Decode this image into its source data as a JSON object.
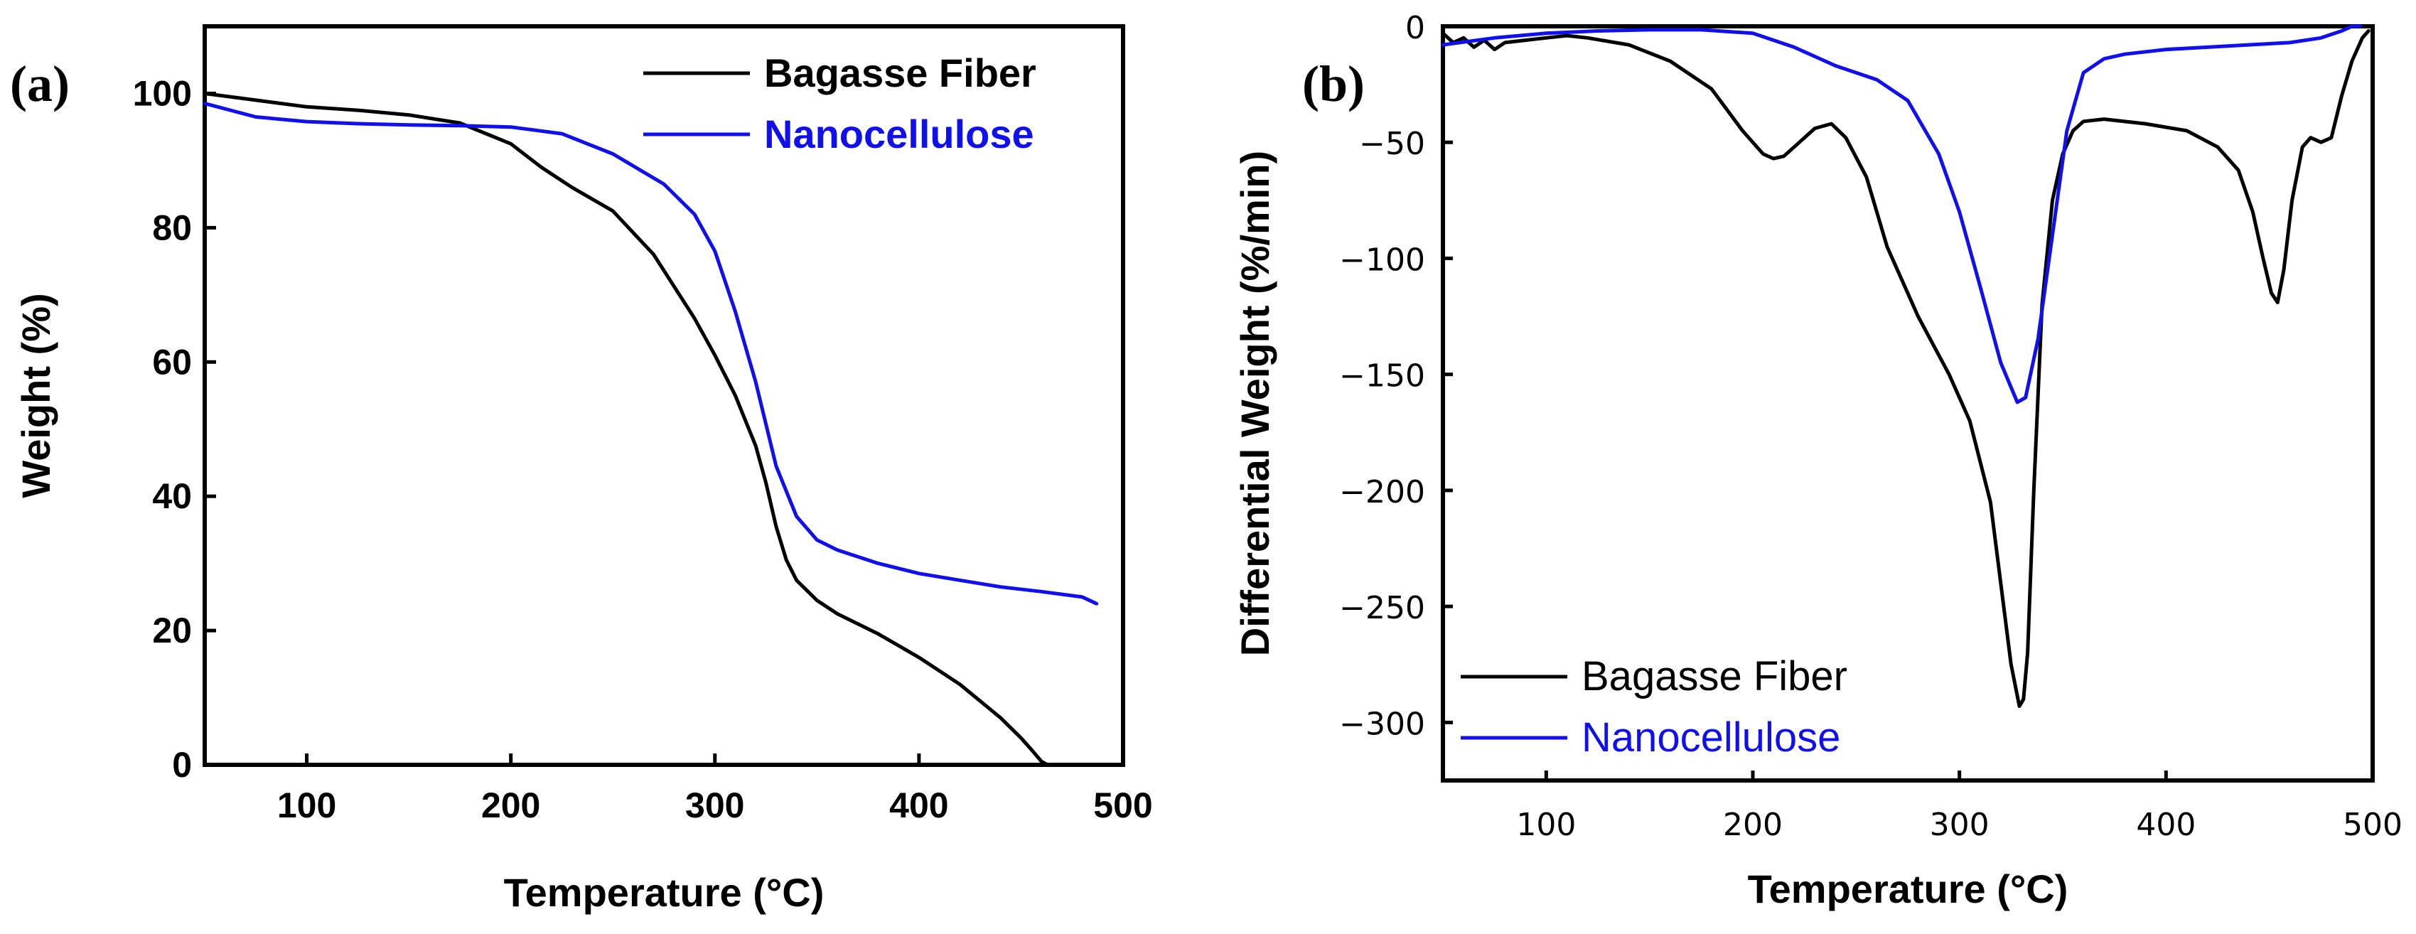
{
  "chart_data": [
    {
      "panel": "(a)",
      "type": "line",
      "title": "",
      "xlabel": "Temperature (°C)",
      "ylabel": "Weight (%)",
      "xlim": [
        50,
        500
      ],
      "ylim": [
        0,
        110
      ],
      "xticks": [
        100,
        200,
        300,
        400,
        500
      ],
      "yticks": [
        0,
        20,
        40,
        60,
        80,
        100
      ],
      "grid": false,
      "legend_position": "top-right",
      "series": [
        {
          "name": "Bagasse Fiber",
          "color": "#000000",
          "x": [
            50,
            75,
            100,
            125,
            150,
            175,
            200,
            215,
            230,
            250,
            270,
            290,
            300,
            310,
            320,
            325,
            330,
            335,
            340,
            350,
            360,
            380,
            400,
            420,
            440,
            450,
            455,
            460,
            463
          ],
          "y": [
            100,
            99,
            98,
            97.5,
            96.8,
            95.6,
            92.5,
            89,
            86,
            82.5,
            76,
            66.5,
            61,
            55,
            47.5,
            42,
            35.5,
            30.5,
            27.5,
            24.5,
            22.5,
            19.5,
            16,
            12,
            7,
            4,
            2.3,
            0.5,
            0
          ]
        },
        {
          "name": "Nanocellulose",
          "color": "#1010ee",
          "x": [
            50,
            75,
            100,
            125,
            150,
            175,
            200,
            225,
            250,
            275,
            290,
            300,
            310,
            320,
            330,
            340,
            350,
            360,
            380,
            400,
            420,
            440,
            460,
            480,
            487
          ],
          "y": [
            98.5,
            96.5,
            95.8,
            95.5,
            95.3,
            95.2,
            95,
            94,
            91,
            86.5,
            82,
            76.5,
            67.5,
            57,
            44.5,
            37,
            33.5,
            32,
            30,
            28.5,
            27.5,
            26.5,
            25.8,
            25,
            24
          ]
        }
      ]
    },
    {
      "panel": "(b)",
      "type": "line",
      "title": "",
      "xlabel": "Temperature (°C)",
      "ylabel": "Differential Weight (%/min)",
      "xlim": [
        50,
        500
      ],
      "ylim": [
        -325,
        0
      ],
      "xticks": [
        100,
        200,
        300,
        400,
        500
      ],
      "yticks": [
        0,
        -50,
        -100,
        -150,
        -200,
        -250,
        -300
      ],
      "grid": false,
      "legend_position": "bottom-left",
      "series": [
        {
          "name": "Bagasse Fiber",
          "color": "#000000",
          "x": [
            50,
            55,
            60,
            65,
            70,
            75,
            80,
            90,
            100,
            110,
            120,
            140,
            160,
            180,
            195,
            205,
            210,
            215,
            220,
            230,
            238,
            245,
            255,
            265,
            280,
            295,
            305,
            315,
            320,
            325,
            329,
            331,
            333,
            336,
            340,
            345,
            350,
            355,
            360,
            370,
            390,
            410,
            425,
            435,
            442,
            447,
            451,
            454,
            457,
            461,
            466,
            470,
            475,
            480,
            485,
            490,
            495,
            498
          ],
          "y": [
            -3,
            -7,
            -5,
            -9,
            -6,
            -10,
            -7,
            -6,
            -5,
            -4,
            -5,
            -8,
            -15,
            -27,
            -45,
            -55,
            -57,
            -56,
            -52,
            -44,
            -42,
            -48,
            -65,
            -95,
            -125,
            -150,
            -170,
            -205,
            -240,
            -275,
            -293,
            -290,
            -270,
            -200,
            -120,
            -75,
            -55,
            -45,
            -41,
            -40,
            -42,
            -45,
            -52,
            -62,
            -80,
            -100,
            -115,
            -119,
            -105,
            -75,
            -52,
            -48,
            -50,
            -48,
            -30,
            -15,
            -5,
            -2
          ]
        },
        {
          "name": "Nanocellulose",
          "color": "#1010ee",
          "x": [
            50,
            75,
            100,
            125,
            150,
            175,
            200,
            220,
            240,
            260,
            275,
            290,
            300,
            310,
            320,
            328,
            332,
            338,
            345,
            352,
            360,
            370,
            380,
            400,
            420,
            440,
            460,
            475,
            485,
            490,
            494
          ],
          "y": [
            -8,
            -5,
            -3,
            -2,
            -1.5,
            -1.5,
            -3,
            -9,
            -17,
            -23,
            -32,
            -55,
            -80,
            -112,
            -145,
            -162,
            -160,
            -135,
            -90,
            -45,
            -20,
            -14,
            -12,
            -10,
            -9,
            -8,
            -7,
            -5,
            -2,
            0,
            0
          ]
        }
      ]
    }
  ]
}
